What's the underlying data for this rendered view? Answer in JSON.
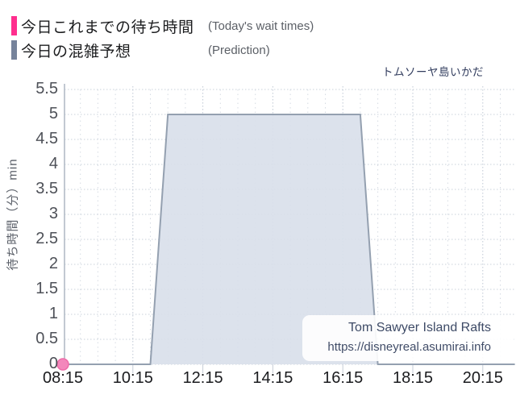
{
  "legend": {
    "items": [
      {
        "label_jp": "今日これまでの待ち時間",
        "label_en": "(Today's wait times)",
        "color": "#ff2e8e"
      },
      {
        "label_jp": "今日の混雑予想",
        "label_en": "(Prediction)",
        "color": "#76839b"
      }
    ]
  },
  "watermark": {
    "line1": "Tom Sawyer Island Rafts",
    "line2": "https://disneyreal.asumirai.info"
  },
  "chart_data": {
    "type": "area",
    "title": "トムソーヤ島いかだ",
    "title_en": "Tom Sawyer Island Rafts",
    "xlabel": "",
    "ylabel": "待ち時間（分）min",
    "ylim": [
      0,
      5.5
    ],
    "y_ticks": [
      "5.5",
      "5",
      "4.5",
      "4",
      "3.5",
      "3",
      "2.5",
      "2",
      "1.5",
      "1",
      "0.5",
      "0"
    ],
    "x_ticks": [
      "08:15",
      "10:15",
      "12:15",
      "14:15",
      "16:15",
      "18:15",
      "20:15"
    ],
    "x_range": [
      "08:15",
      "21:10"
    ],
    "grid": true,
    "legend_position": "top-left",
    "series": [
      {
        "name": "今日これまでの待ち時間",
        "name_en": "Today's wait times",
        "type": "scatter",
        "color": "#f387bb",
        "stroke": "#ee6ca9",
        "points": [
          {
            "time": "08:15",
            "value": 0
          }
        ]
      },
      {
        "name": "今日の混雑予想",
        "name_en": "Prediction",
        "type": "area",
        "line_color": "#94a0b0",
        "fill_color": "#d9e0ea",
        "points": [
          {
            "time": "08:15",
            "value": 0
          },
          {
            "time": "10:45",
            "value": 0
          },
          {
            "time": "11:15",
            "value": 5
          },
          {
            "time": "16:45",
            "value": 5
          },
          {
            "time": "17:15",
            "value": 0
          },
          {
            "time": "21:10",
            "value": 0
          }
        ]
      }
    ]
  }
}
